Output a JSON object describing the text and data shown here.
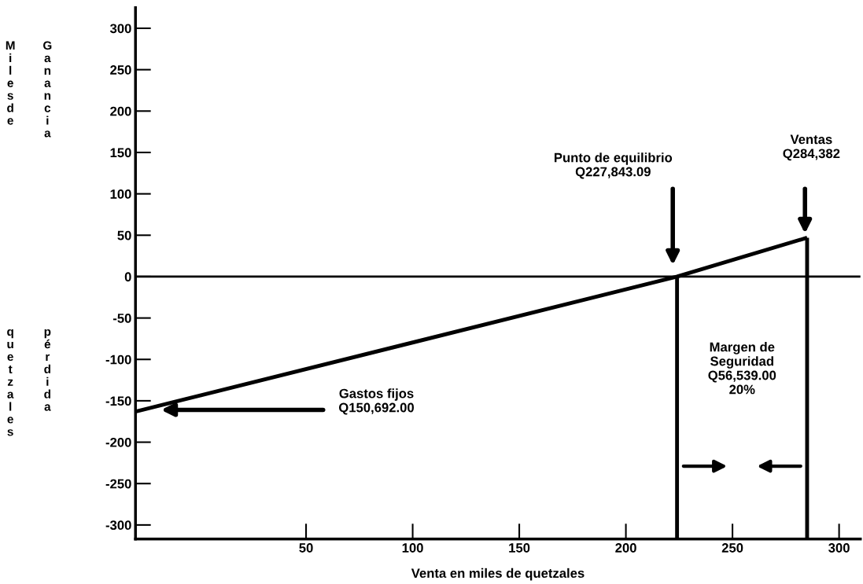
{
  "chart_data": {
    "type": "line",
    "xlabel": "Venta en miles de quetzales",
    "xlim": [
      -30,
      310
    ],
    "xticks": [
      50,
      100,
      150,
      200,
      250,
      300
    ],
    "ylim": [
      -317,
      325
    ],
    "yticks": [
      300,
      250,
      200,
      150,
      100,
      50,
      0,
      -50,
      -100,
      -150,
      -200,
      -250,
      -300
    ],
    "grid": false,
    "series": [
      {
        "color": "#000000",
        "x": [
          -30,
          224,
          285
        ],
        "values": [
          -163,
          0,
          47
        ]
      },
      {
        "color": "#000000",
        "x": [
          224,
          224
        ],
        "values": [
          0,
          -317
        ]
      },
      {
        "color": "#000000",
        "x": [
          285,
          285
        ],
        "values": [
          47,
          -317
        ]
      }
    ],
    "ref_lines": [
      {
        "axis": "y",
        "value": 0,
        "label": null,
        "color": "#000000"
      }
    ],
    "annotations": [
      "Miles de quetzales",
      "Ganancia",
      "pérdida",
      "Punto de equilibrio\nQ227,843.09",
      "Ventas\nQ284,382",
      "Gastos fijos\nQ150,692.00",
      "Margen de\nSeguridad\nQ56,539.00\n20%"
    ]
  }
}
